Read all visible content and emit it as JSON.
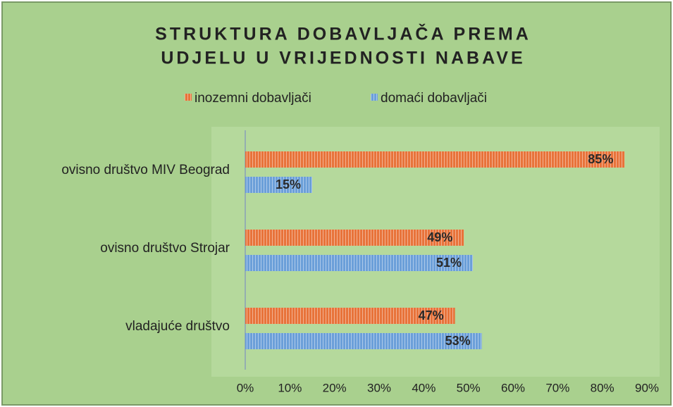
{
  "chart_data": {
    "type": "hbar",
    "title": [
      "STRUKTURA DOBAVLJAČA PREMA",
      "UDJELU U VRIJEDNOSTI NABAVE"
    ],
    "categories": [
      "ovisno društvo MIV Beograd",
      "ovisno društvo Strojar",
      "vladajuće društvo"
    ],
    "series": [
      {
        "name": "inozemni dobavljači",
        "color": "#e8733a",
        "values": [
          85,
          49,
          47
        ],
        "value_labels": [
          "85%",
          "49%",
          "47%"
        ]
      },
      {
        "name": "domaći dobavljači",
        "color": "#6b9fd9",
        "values": [
          15,
          51,
          53
        ],
        "value_labels": [
          "15%",
          "51%",
          "53%"
        ]
      }
    ],
    "xlim": [
      0,
      90
    ],
    "xticks": [
      {
        "value": 0,
        "label": "0%"
      },
      {
        "value": 10,
        "label": "10%"
      },
      {
        "value": 20,
        "label": "20%"
      },
      {
        "value": 30,
        "label": "30%"
      },
      {
        "value": 40,
        "label": "40%"
      },
      {
        "value": 50,
        "label": "50%"
      },
      {
        "value": 60,
        "label": "60%"
      },
      {
        "value": 70,
        "label": "70%"
      },
      {
        "value": 80,
        "label": "80%"
      },
      {
        "value": 90,
        "label": "90%"
      }
    ],
    "legend": "top"
  }
}
